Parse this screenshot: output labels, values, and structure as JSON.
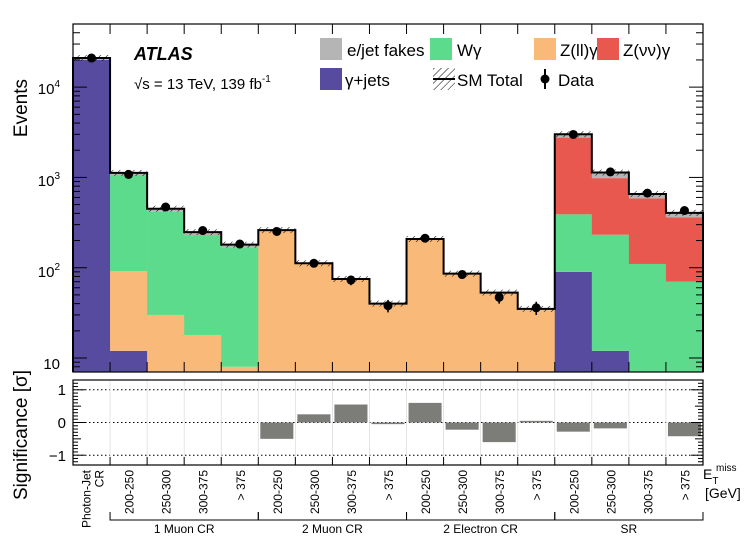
{
  "colors": {
    "fakes": "#b5b5b5",
    "wgamma": "#5ddb8c",
    "zllgamma": "#f9b978",
    "znunugamma": "#e8584e",
    "gammajets": "#574ba0",
    "signif": "#7c7c78"
  },
  "chart_data": {
    "type": "bar",
    "title": "",
    "atlas_label": "ATLAS",
    "energy_label": "√s = 13 TeV, 139 fb",
    "energy_sup": "-1",
    "ylabel": "Events",
    "ylabel_lower": "Significance [σ]",
    "ylim": [
      7,
      50000
    ],
    "ylim_lower": [
      -1.3,
      1.3
    ],
    "y_ticks": [
      {
        "value": 10,
        "label": "10",
        "sup": ""
      },
      {
        "value": 100,
        "label": "10",
        "sup": "2"
      },
      {
        "value": 1000,
        "label": "10",
        "sup": "3"
      },
      {
        "value": 10000,
        "label": "10",
        "sup": "4"
      }
    ],
    "y_ticks_lower": [
      "1",
      "0",
      "−1"
    ],
    "x_axis_label": "E",
    "x_axis_label_sub": "T",
    "x_axis_label_sup": "miss",
    "x_axis_unit": "[GeV]",
    "categories": [
      "Photon-Jet CR",
      "200-250",
      "250-300",
      "300-375",
      "> 375",
      "200-250",
      "250-300",
      "300-375",
      "> 375",
      "200-250",
      "250-300",
      "300-375",
      "> 375",
      "200-250",
      "250-300",
      "300-375",
      "> 375"
    ],
    "groups": [
      {
        "label": "1 Muon CR",
        "start": 1,
        "end": 4
      },
      {
        "label": "2 Muon CR",
        "start": 5,
        "end": 8
      },
      {
        "label": "2 Electron CR",
        "start": 9,
        "end": 12
      },
      {
        "label": "SR",
        "start": 13,
        "end": 16
      }
    ],
    "stack_order": [
      "gammajets",
      "zllgamma",
      "wgamma",
      "znunugamma",
      "fakes"
    ],
    "series": [
      {
        "key": "fakes",
        "name": "e/jet fakes",
        "values": [
          1000,
          60,
          35,
          18,
          12,
          3,
          2,
          1,
          1,
          3,
          2,
          1,
          1,
          250,
          150,
          70,
          45
        ]
      },
      {
        "key": "wgamma",
        "name": "Wγ",
        "values": [
          0,
          970,
          385,
          212,
          160,
          0,
          0,
          0,
          0,
          0,
          0,
          0,
          0,
          300,
          220,
          110,
          70
        ]
      },
      {
        "key": "zllgamma",
        "name": "Z(ll)γ",
        "values": [
          0,
          80,
          30,
          18,
          8,
          258,
          110,
          74,
          39,
          205,
          84,
          52,
          34,
          0,
          0,
          0,
          0
        ]
      },
      {
        "key": "znunugamma",
        "name": "Z(νν)γ",
        "values": [
          0,
          0,
          0,
          0,
          0,
          0,
          0,
          0,
          0,
          0,
          0,
          0,
          0,
          2370,
          750,
          475,
          290
        ]
      },
      {
        "key": "gammajets",
        "name": "γ+jets",
        "values": [
          20000,
          12,
          0,
          0,
          0,
          0,
          0,
          0,
          0,
          0,
          0,
          0,
          0,
          90,
          12,
          0,
          0
        ]
      }
    ],
    "sm_total": {
      "name": "SM Total",
      "values": [
        21000,
        1122,
        450,
        248,
        180,
        261,
        112,
        75,
        40,
        208,
        86,
        53,
        35,
        3010,
        1132,
        655,
        405
      ]
    },
    "data": {
      "name": "Data",
      "values": [
        21000,
        1080,
        470,
        258,
        183,
        252,
        112,
        73,
        38,
        212,
        84,
        47,
        36,
        2990,
        1150,
        670,
        430
      ],
      "errors": [
        150,
        33,
        22,
        16,
        14,
        16,
        11,
        9,
        6,
        15,
        9,
        7,
        6,
        55,
        34,
        26,
        21
      ]
    },
    "significance": [
      0,
      0,
      0,
      0,
      0,
      -0.5,
      0.25,
      0.55,
      -0.05,
      0.6,
      -0.22,
      -0.6,
      0.05,
      -0.28,
      -0.18,
      0,
      -0.42
    ],
    "legend": [
      "e/jet fakes",
      "Wγ",
      "Z(ll)γ",
      "Z(νν)γ",
      "γ+jets",
      "SM Total",
      "Data"
    ]
  }
}
